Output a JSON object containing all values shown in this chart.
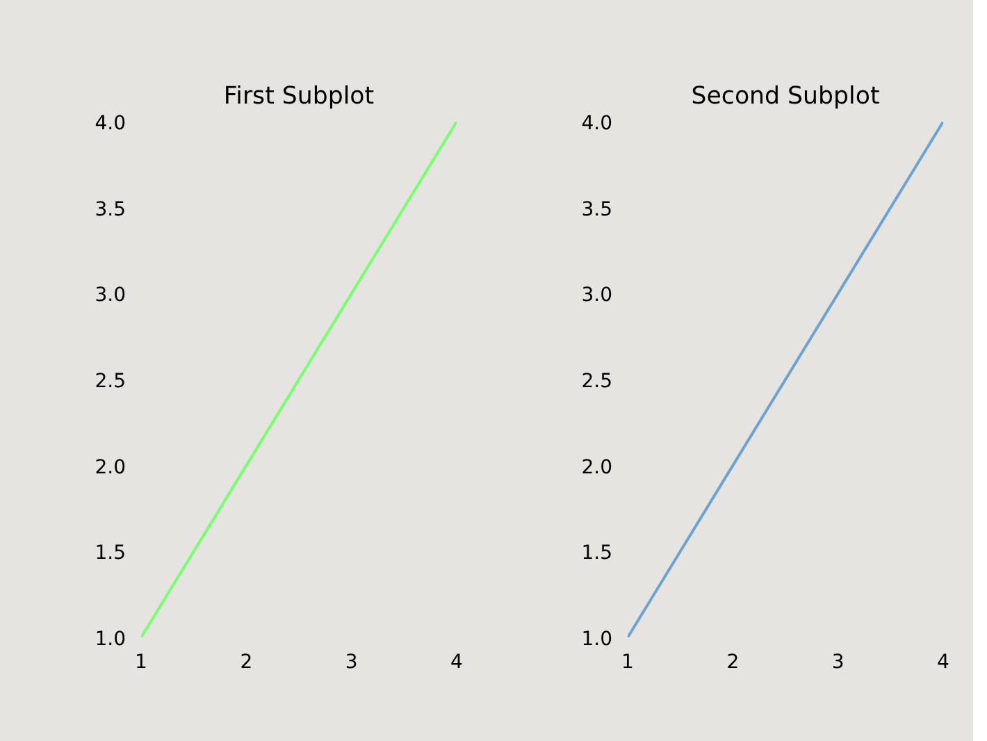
{
  "chart_data": [
    {
      "type": "line",
      "title": "First Subplot",
      "x": [
        1,
        2,
        3,
        4
      ],
      "series": [
        {
          "color": "#77ff6f",
          "values": [
            1,
            2,
            3,
            4
          ]
        }
      ],
      "xlim": [
        1,
        4
      ],
      "ylim": [
        1,
        4
      ],
      "xticks": [
        1,
        2,
        3,
        4
      ],
      "yticks": [
        {
          "value": 1,
          "label": "1.0"
        },
        {
          "value": 1.5,
          "label": "1.5"
        },
        {
          "value": 2,
          "label": "2.0"
        },
        {
          "value": 2.5,
          "label": "2.5"
        },
        {
          "value": 3,
          "label": "3.0"
        },
        {
          "value": 3.5,
          "label": "3.5"
        },
        {
          "value": 4,
          "label": "4.0"
        }
      ]
    },
    {
      "type": "line",
      "title": "Second Subplot",
      "x": [
        1,
        2,
        3,
        4
      ],
      "series": [
        {
          "color": "#6fa3cf",
          "values": [
            1,
            2,
            3,
            4
          ]
        }
      ],
      "xlim": [
        1,
        4
      ],
      "ylim": [
        1,
        4
      ],
      "xticks": [
        1,
        2,
        3,
        4
      ],
      "yticks": [
        {
          "value": 1,
          "label": "1.0"
        },
        {
          "value": 1.5,
          "label": "1.5"
        },
        {
          "value": 2,
          "label": "2.0"
        },
        {
          "value": 2.5,
          "label": "2.5"
        },
        {
          "value": 3,
          "label": "3.0"
        },
        {
          "value": 3.5,
          "label": "3.5"
        },
        {
          "value": 4,
          "label": "4.0"
        }
      ]
    }
  ]
}
